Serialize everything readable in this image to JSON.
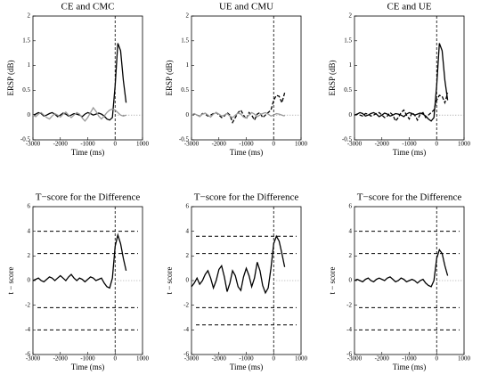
{
  "chart_data": [
    {
      "type": "line",
      "title": "CE and CMC",
      "xlabel": "Time (ms)",
      "ylabel": "ERSP (dB)",
      "x": [
        -3000,
        -2900,
        -2800,
        -2700,
        -2600,
        -2500,
        -2400,
        -2300,
        -2200,
        -2100,
        -2000,
        -1900,
        -1800,
        -1700,
        -1600,
        -1500,
        -1400,
        -1300,
        -1200,
        -1100,
        -1000,
        -900,
        -800,
        -700,
        -600,
        -500,
        -400,
        -300,
        -200,
        -100,
        0,
        100,
        200,
        300,
        400
      ],
      "series": [
        {
          "color": "#000000",
          "style": "solid",
          "values": [
            0,
            0.02,
            0.05,
            0.03,
            -0.02,
            0.0,
            0.03,
            0.05,
            0.02,
            -0.03,
            0.0,
            0.04,
            0.02,
            -0.02,
            0.0,
            0.03,
            0.02,
            0.0,
            -0.03,
            0.02,
            0.05,
            0.03,
            0.0,
            0.02,
            0.04,
            0.02,
            -0.02,
            -0.08,
            -0.1,
            -0.05,
            0.6,
            1.45,
            1.3,
            0.7,
            0.25
          ]
        },
        {
          "color": "#999999",
          "style": "solid",
          "values": [
            0,
            -0.03,
            0.02,
            0.05,
            0.0,
            -0.05,
            -0.08,
            -0.02,
            0.03,
            0.0,
            -0.04,
            0.02,
            0.06,
            0.0,
            -0.05,
            0.0,
            0.05,
            0.02,
            -0.06,
            -0.12,
            -0.05,
            0.05,
            0.15,
            0.08,
            -0.02,
            -0.08,
            -0.02,
            0.05,
            0.1,
            0.12,
            0.1,
            0.05,
            0.0,
            -0.02,
            0.0
          ]
        }
      ],
      "xlim": [
        -3000,
        1000
      ],
      "ylim": [
        -0.5,
        2
      ],
      "xticks": [
        -3000,
        -2000,
        -1000,
        0,
        1000
      ],
      "yticks": [
        -0.5,
        0,
        0.5,
        1,
        1.5,
        2
      ],
      "vline": 0,
      "baseline": 0,
      "thresholds": []
    },
    {
      "type": "line",
      "title": "UE and CMU",
      "xlabel": "Time (ms)",
      "ylabel": "ERSP (dB)",
      "x": [
        -3000,
        -2900,
        -2800,
        -2700,
        -2600,
        -2500,
        -2400,
        -2300,
        -2200,
        -2100,
        -2000,
        -1900,
        -1800,
        -1700,
        -1600,
        -1500,
        -1400,
        -1300,
        -1200,
        -1100,
        -1000,
        -900,
        -800,
        -700,
        -600,
        -500,
        -400,
        -300,
        -200,
        -100,
        0,
        100,
        200,
        300,
        400
      ],
      "series": [
        {
          "color": "#000000",
          "style": "dashed",
          "values": [
            0,
            0.02,
            0.0,
            -0.02,
            0.03,
            0.02,
            -0.02,
            0.0,
            0.03,
            0.05,
            0.0,
            -0.05,
            -0.02,
            0.05,
            0.0,
            -0.15,
            -0.05,
            0.05,
            0.1,
            0.0,
            -0.08,
            0.05,
            0.0,
            -0.1,
            0.02,
            0.05,
            -0.05,
            0.0,
            0.05,
            0.1,
            0.3,
            0.4,
            0.38,
            0.25,
            0.45
          ]
        },
        {
          "color": "#999999",
          "style": "solid",
          "values": [
            0,
            0.03,
            0.0,
            -0.03,
            0.02,
            0.04,
            0.0,
            -0.04,
            0.02,
            0.05,
            0.02,
            -0.02,
            0.0,
            0.03,
            -0.02,
            -0.05,
            0.0,
            0.04,
            0.02,
            -0.04,
            -0.06,
            0.0,
            0.05,
            0.02,
            -0.03,
            0.0,
            0.03,
            0.05,
            0.02,
            -0.02,
            0.0,
            0.03,
            0.02,
            0.0,
            -0.02
          ]
        }
      ],
      "xlim": [
        -3000,
        1000
      ],
      "ylim": [
        -0.5,
        2
      ],
      "xticks": [
        -3000,
        -2000,
        -1000,
        0,
        1000
      ],
      "yticks": [
        -0.5,
        0,
        0.5,
        1,
        1.5,
        2
      ],
      "vline": 0,
      "baseline": 0,
      "thresholds": []
    },
    {
      "type": "line",
      "title": "CE and UE",
      "xlabel": "Time (ms)",
      "ylabel": "ERSP (dB)",
      "x": [
        -3000,
        -2900,
        -2800,
        -2700,
        -2600,
        -2500,
        -2400,
        -2300,
        -2200,
        -2100,
        -2000,
        -1900,
        -1800,
        -1700,
        -1600,
        -1500,
        -1400,
        -1300,
        -1200,
        -1100,
        -1000,
        -900,
        -800,
        -700,
        -600,
        -500,
        -400,
        -300,
        -200,
        -100,
        0,
        100,
        200,
        300,
        400
      ],
      "series": [
        {
          "color": "#000000",
          "style": "solid",
          "values": [
            0,
            0.02,
            0.05,
            0.03,
            -0.02,
            0.0,
            0.03,
            0.05,
            0.02,
            -0.03,
            0.0,
            0.04,
            0.02,
            -0.02,
            0.0,
            0.03,
            0.02,
            0.0,
            -0.03,
            0.02,
            0.05,
            0.03,
            0.0,
            0.02,
            0.04,
            0.02,
            -0.02,
            -0.08,
            -0.12,
            -0.05,
            0.6,
            1.45,
            1.3,
            0.7,
            0.3
          ]
        },
        {
          "color": "#000000",
          "style": "dashed",
          "values": [
            0,
            0.02,
            0.0,
            -0.02,
            0.03,
            0.02,
            -0.02,
            0.0,
            0.03,
            0.05,
            0.0,
            -0.05,
            -0.02,
            0.05,
            0.0,
            -0.12,
            -0.05,
            0.05,
            0.1,
            0.0,
            -0.08,
            0.05,
            0.0,
            -0.1,
            0.02,
            0.05,
            -0.05,
            0.0,
            0.05,
            0.1,
            0.3,
            0.4,
            0.38,
            0.25,
            0.45
          ]
        }
      ],
      "xlim": [
        -3000,
        1000
      ],
      "ylim": [
        -0.5,
        2
      ],
      "xticks": [
        -3000,
        -2000,
        -1000,
        0,
        1000
      ],
      "yticks": [
        -0.5,
        0,
        0.5,
        1,
        1.5,
        2
      ],
      "vline": 0,
      "baseline": 0,
      "thresholds": []
    },
    {
      "type": "line",
      "title": "T−score for the Difference",
      "xlabel": "Time (ms)",
      "ylabel": "t − score",
      "x": [
        -3000,
        -2900,
        -2800,
        -2700,
        -2600,
        -2500,
        -2400,
        -2300,
        -2200,
        -2100,
        -2000,
        -1900,
        -1800,
        -1700,
        -1600,
        -1500,
        -1400,
        -1300,
        -1200,
        -1100,
        -1000,
        -900,
        -800,
        -700,
        -600,
        -500,
        -400,
        -300,
        -200,
        -100,
        0,
        100,
        200,
        300,
        400
      ],
      "series": [
        {
          "color": "#000000",
          "style": "solid",
          "values": [
            0,
            0.1,
            0.2,
            0.0,
            -0.1,
            0.1,
            0.3,
            0.2,
            0.0,
            0.2,
            0.4,
            0.2,
            0.0,
            0.3,
            0.5,
            0.2,
            0.0,
            0.2,
            0.1,
            -0.1,
            0.1,
            0.3,
            0.2,
            0.0,
            0.1,
            0.2,
            -0.2,
            -0.5,
            -0.6,
            0.2,
            2.8,
            3.7,
            3.0,
            1.8,
            0.8
          ]
        }
      ],
      "xlim": [
        -3000,
        1000
      ],
      "ylim": [
        -6,
        6
      ],
      "xticks": [
        -3000,
        -2000,
        -1000,
        0,
        1000
      ],
      "yticks": [
        -6,
        -4,
        -2,
        0,
        2,
        4,
        6
      ],
      "vline": 0,
      "baseline": 0,
      "thresholds": [
        4,
        2.2,
        -2.2,
        -4
      ]
    },
    {
      "type": "line",
      "title": "T−score for the Difference",
      "xlabel": "Time (ms)",
      "ylabel": "t − score",
      "x": [
        -3000,
        -2900,
        -2800,
        -2700,
        -2600,
        -2500,
        -2400,
        -2300,
        -2200,
        -2100,
        -2000,
        -1900,
        -1800,
        -1700,
        -1600,
        -1500,
        -1400,
        -1300,
        -1200,
        -1100,
        -1000,
        -900,
        -800,
        -700,
        -600,
        -500,
        -400,
        -300,
        -200,
        -100,
        0,
        100,
        200,
        300,
        400
      ],
      "series": [
        {
          "color": "#000000",
          "style": "solid",
          "values": [
            -0.5,
            -0.2,
            0.2,
            -0.3,
            0.0,
            0.5,
            0.8,
            0.2,
            -0.6,
            0.0,
            0.9,
            1.2,
            0.3,
            -0.9,
            -0.2,
            0.8,
            0.4,
            -0.5,
            -0.8,
            0.3,
            1.0,
            0.4,
            -0.5,
            0.2,
            1.5,
            0.8,
            -0.4,
            -1.0,
            -0.6,
            1.0,
            3.0,
            3.6,
            3.2,
            2.2,
            1.1
          ]
        }
      ],
      "xlim": [
        -3000,
        1000
      ],
      "ylim": [
        -6,
        6
      ],
      "xticks": [
        -3000,
        -2000,
        -1000,
        0,
        1000
      ],
      "yticks": [
        -6,
        -4,
        -2,
        0,
        2,
        4,
        6
      ],
      "vline": 0,
      "baseline": 0,
      "thresholds": [
        3.6,
        2.2,
        -2.2,
        -3.6
      ]
    },
    {
      "type": "line",
      "title": "T−score for the Difference",
      "xlabel": "Time (ms)",
      "ylabel": "t − score",
      "x": [
        -3000,
        -2900,
        -2800,
        -2700,
        -2600,
        -2500,
        -2400,
        -2300,
        -2200,
        -2100,
        -2000,
        -1900,
        -1800,
        -1700,
        -1600,
        -1500,
        -1400,
        -1300,
        -1200,
        -1100,
        -1000,
        -900,
        -800,
        -700,
        -600,
        -500,
        -400,
        -300,
        -200,
        -100,
        0,
        100,
        200,
        300,
        400
      ],
      "series": [
        {
          "color": "#000000",
          "style": "solid",
          "values": [
            0,
            0.1,
            0.0,
            -0.1,
            0.1,
            0.2,
            0.0,
            -0.1,
            0.1,
            0.2,
            0.1,
            0.0,
            0.2,
            0.3,
            0.1,
            -0.1,
            0.0,
            0.2,
            0.1,
            -0.1,
            0.0,
            0.1,
            0.0,
            -0.2,
            0.0,
            0.1,
            -0.2,
            -0.4,
            -0.5,
            0.0,
            1.8,
            2.5,
            2.2,
            1.2,
            0.4
          ]
        }
      ],
      "xlim": [
        -3000,
        1000
      ],
      "ylim": [
        -6,
        6
      ],
      "xticks": [
        -3000,
        -2000,
        -1000,
        0,
        1000
      ],
      "yticks": [
        -6,
        -4,
        -2,
        0,
        2,
        4,
        6
      ],
      "vline": 0,
      "baseline": 0,
      "thresholds": [
        4,
        2.2,
        -2.2,
        -4
      ]
    }
  ]
}
